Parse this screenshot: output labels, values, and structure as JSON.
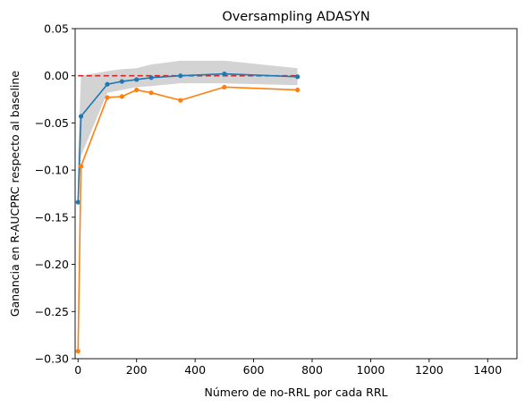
{
  "chart_data": {
    "type": "line",
    "title": "Oversampling ADASYN",
    "xlabel": "Número de no-RRL por cada RRL",
    "ylabel": "Ganancia en R-AUCPRC respecto al baseline",
    "xlim": [
      -10,
      1500
    ],
    "ylim": [
      -0.3,
      0.05
    ],
    "xticks": [
      0,
      200,
      400,
      600,
      800,
      1000,
      1200,
      1400
    ],
    "yticks": [
      -0.3,
      -0.25,
      -0.2,
      -0.15,
      -0.1,
      -0.05,
      0.0,
      0.05
    ],
    "xtick_labels": [
      "0",
      "200",
      "400",
      "600",
      "800",
      "1000",
      "1200",
      "1400"
    ],
    "ytick_labels": [
      "−0.30",
      "−0.25",
      "−0.20",
      "−0.15",
      "−0.10",
      "−0.05",
      "0.00",
      "0.05"
    ],
    "grid": false,
    "legend": "none",
    "baseline": {
      "y": 0.0,
      "x_range": [
        0,
        750
      ],
      "color": "#d62728",
      "style": "dashed"
    },
    "band": {
      "color": "#d3d3d3",
      "x": [
        0,
        10,
        100,
        150,
        200,
        250,
        350,
        500,
        750
      ],
      "upper": [
        -0.085,
        0.0,
        0.005,
        0.007,
        0.008,
        0.012,
        0.016,
        0.016,
        0.008
      ],
      "lower": [
        -0.135,
        -0.085,
        -0.018,
        -0.015,
        -0.012,
        -0.011,
        -0.008,
        -0.008,
        -0.01
      ]
    },
    "series": [
      {
        "color": "#1f77b4",
        "x": [
          0,
          10,
          100,
          150,
          200,
          250,
          350,
          500,
          750
        ],
        "y": [
          -0.134,
          -0.043,
          -0.009,
          -0.006,
          -0.004,
          -0.002,
          0.0,
          0.002,
          -0.001
        ]
      },
      {
        "color": "#ff7f0e",
        "x": [
          0,
          10,
          100,
          150,
          200,
          250,
          350,
          500,
          750
        ],
        "y": [
          -0.292,
          -0.096,
          -0.023,
          -0.022,
          -0.015,
          -0.018,
          -0.026,
          -0.012,
          -0.015
        ]
      }
    ]
  }
}
